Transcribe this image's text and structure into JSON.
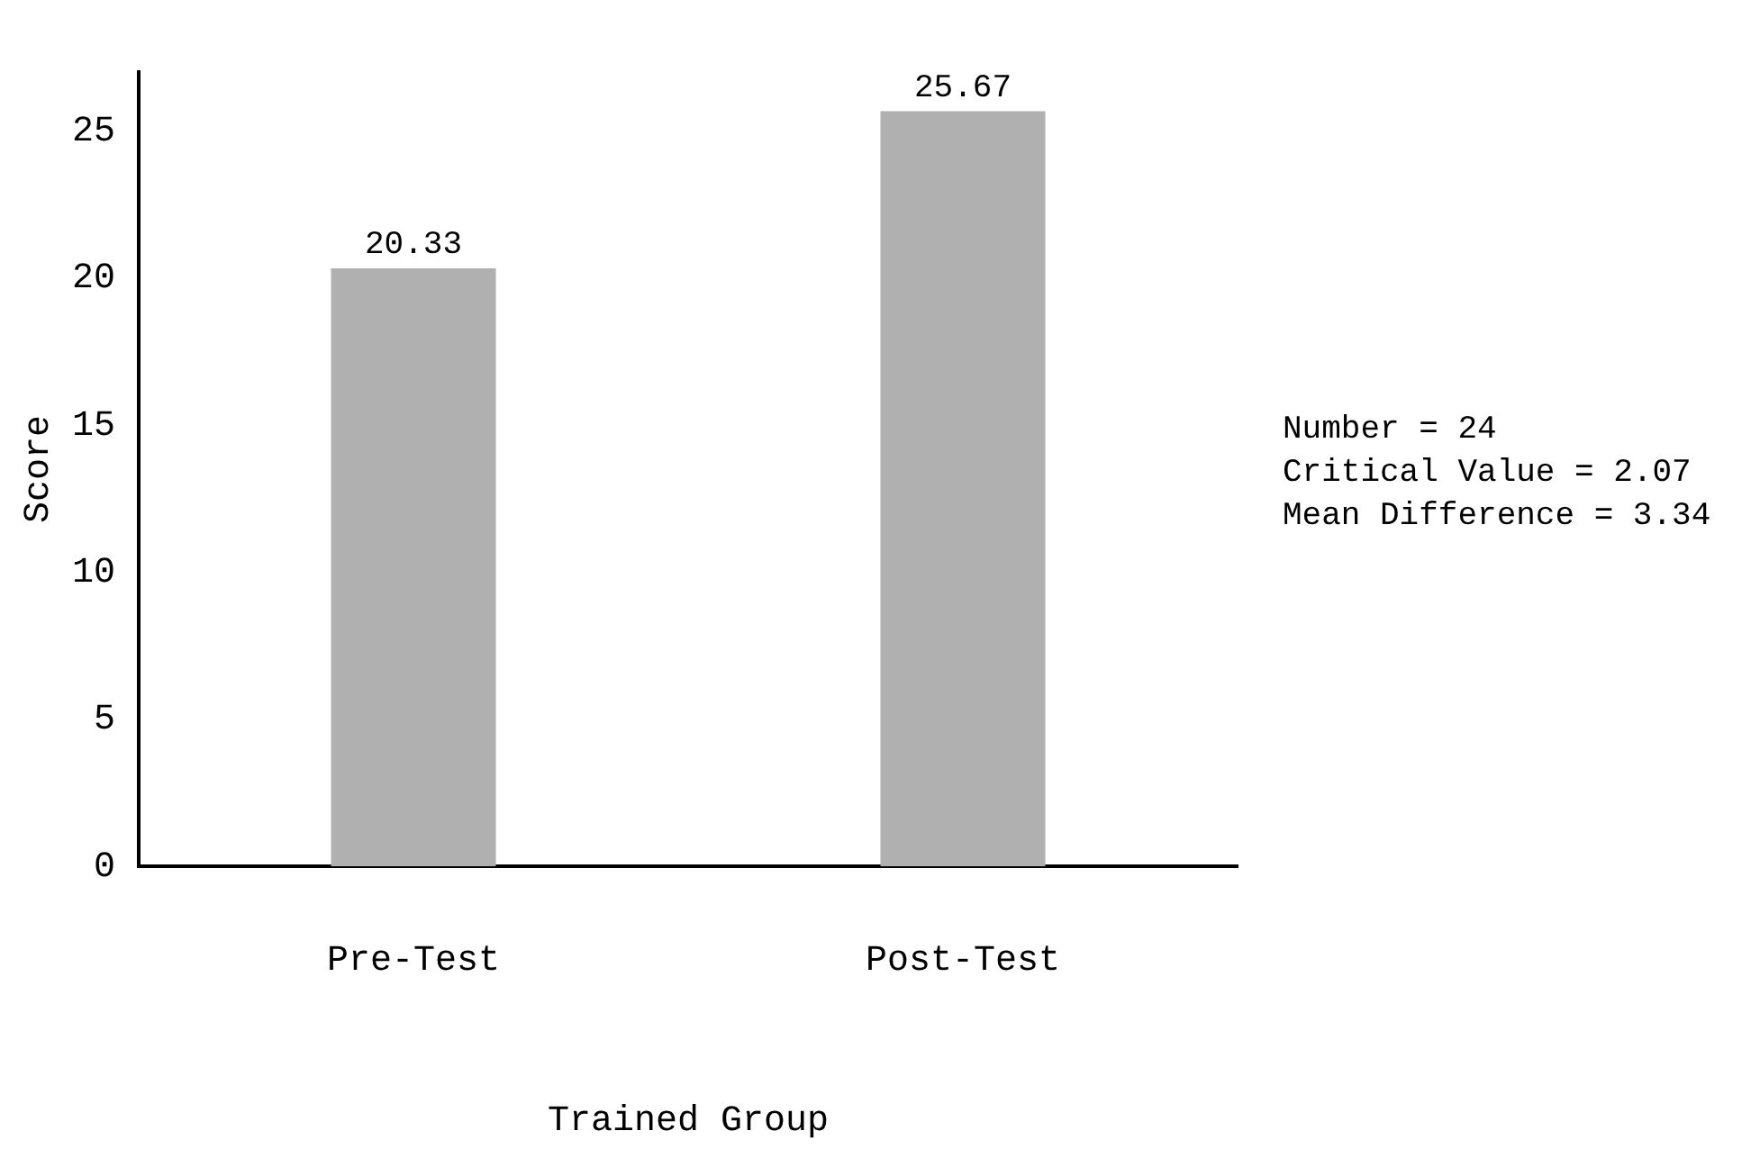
{
  "chart_data": {
    "type": "bar",
    "categories": [
      "Pre-Test",
      "Post-Test"
    ],
    "values": [
      20.33,
      25.67
    ],
    "color": "#b0b0b0",
    "data_labels": true,
    "xlabel": "Trained Group",
    "ylabel": "Score",
    "ylim": [
      0,
      27
    ],
    "yticks": [
      0,
      5,
      10,
      15,
      20,
      25
    ],
    "grid": false,
    "annotations": [
      "Number = 24",
      "Critical Value = 2.07",
      "Mean Difference = 3.34"
    ]
  }
}
